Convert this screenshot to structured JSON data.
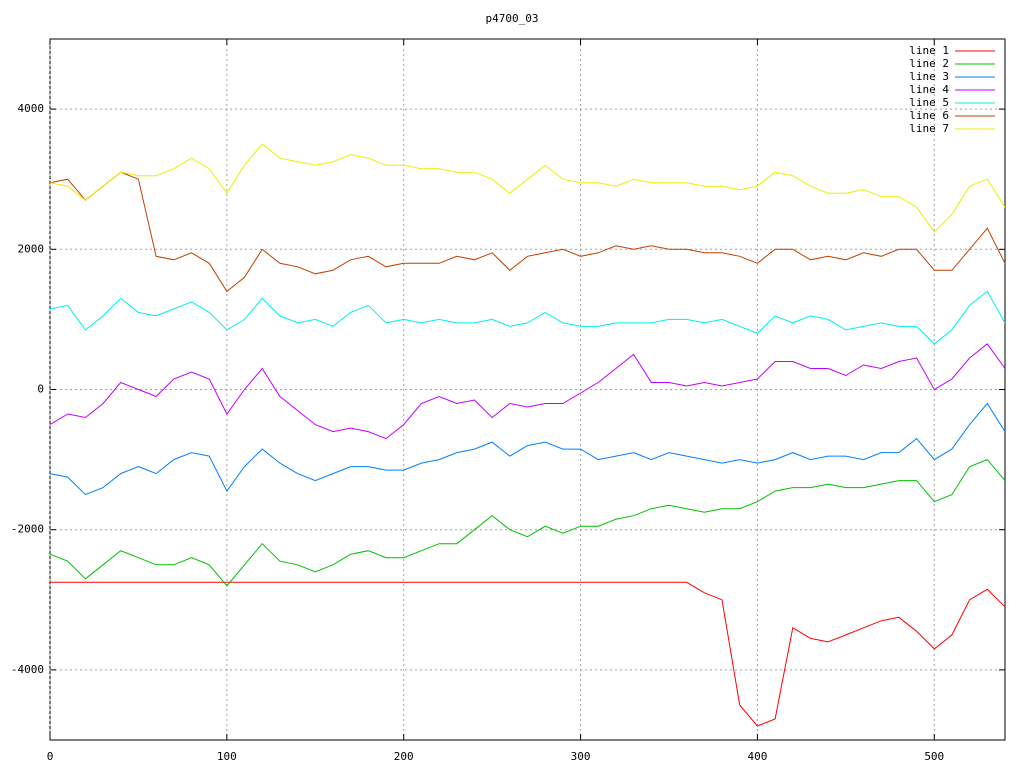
{
  "chart_data": {
    "type": "line",
    "title": "p4700_03",
    "x": [
      0,
      10,
      20,
      30,
      40,
      50,
      60,
      70,
      80,
      90,
      100,
      110,
      120,
      130,
      140,
      150,
      160,
      170,
      180,
      190,
      200,
      210,
      220,
      230,
      240,
      250,
      260,
      270,
      280,
      290,
      300,
      310,
      320,
      330,
      340,
      350,
      360,
      370,
      380,
      390,
      400,
      410,
      420,
      430,
      440,
      450,
      460,
      470,
      480,
      490,
      500,
      510,
      520,
      530,
      540
    ],
    "xlim": [
      0,
      540
    ],
    "ylim": [
      -5000,
      5000
    ],
    "xticks": [
      0,
      100,
      200,
      300,
      400,
      500
    ],
    "yticks": [
      -4000,
      -2000,
      0,
      2000,
      4000
    ],
    "grid": true,
    "legend": "top-right",
    "series": [
      {
        "name": "line 1",
        "color": "#ff0000",
        "values": [
          -2750,
          -2750,
          -2750,
          -2750,
          -2750,
          -2750,
          -2750,
          -2750,
          -2750,
          -2750,
          -2750,
          -2750,
          -2750,
          -2750,
          -2750,
          -2750,
          -2750,
          -2750,
          -2750,
          -2750,
          -2750,
          -2750,
          -2750,
          -2750,
          -2750,
          -2750,
          -2750,
          -2750,
          -2750,
          -2750,
          -2750,
          -2750,
          -2750,
          -2750,
          -2750,
          -2750,
          -2750,
          -2900,
          -3000,
          -4500,
          -4800,
          -4700,
          -3400,
          -3550,
          -3600,
          -3500,
          -3400,
          -3300,
          -3250,
          -3450,
          -3700,
          -3500,
          -3000,
          -2850,
          -3100
        ]
      },
      {
        "name": "line 2",
        "color": "#00c000",
        "values": [
          -2350,
          -2450,
          -2700,
          -2500,
          -2300,
          -2400,
          -2500,
          -2500,
          -2400,
          -2500,
          -2800,
          -2500,
          -2200,
          -2450,
          -2500,
          -2600,
          -2500,
          -2350,
          -2300,
          -2400,
          -2400,
          -2300,
          -2200,
          -2200,
          -2000,
          -1800,
          -2000,
          -2100,
          -1950,
          -2050,
          -1950,
          -1950,
          -1850,
          -1800,
          -1700,
          -1650,
          -1700,
          -1750,
          -1700,
          -1700,
          -1600,
          -1450,
          -1400,
          -1400,
          -1350,
          -1400,
          -1400,
          -1350,
          -1300,
          -1300,
          -1600,
          -1500,
          -1100,
          -1000,
          -1300
        ]
      },
      {
        "name": "line 3",
        "color": "#0080ff",
        "values": [
          -1200,
          -1250,
          -1500,
          -1400,
          -1200,
          -1100,
          -1200,
          -1000,
          -900,
          -950,
          -1450,
          -1100,
          -850,
          -1050,
          -1200,
          -1300,
          -1200,
          -1100,
          -1100,
          -1150,
          -1150,
          -1050,
          -1000,
          -900,
          -850,
          -750,
          -950,
          -800,
          -750,
          -850,
          -850,
          -1000,
          -950,
          -900,
          -1000,
          -900,
          -950,
          -1000,
          -1050,
          -1000,
          -1050,
          -1000,
          -900,
          -1000,
          -950,
          -950,
          -1000,
          -900,
          -900,
          -700,
          -1000,
          -850,
          -500,
          -200,
          -600
        ]
      },
      {
        "name": "line 4",
        "color": "#c000ff",
        "values": [
          -500,
          -350,
          -400,
          -200,
          100,
          0,
          -100,
          150,
          250,
          150,
          -350,
          0,
          300,
          -100,
          -300,
          -500,
          -600,
          -550,
          -600,
          -700,
          -500,
          -200,
          -100,
          -200,
          -150,
          -400,
          -200,
          -250,
          -200,
          -200,
          -50,
          100,
          300,
          500,
          100,
          100,
          50,
          100,
          50,
          100,
          150,
          400,
          400,
          300,
          300,
          200,
          350,
          300,
          400,
          450,
          0,
          150,
          450,
          650,
          300
        ]
      },
      {
        "name": "line 5",
        "color": "#00eeee",
        "values": [
          1150,
          1200,
          850,
          1050,
          1300,
          1100,
          1050,
          1150,
          1250,
          1100,
          850,
          1000,
          1300,
          1050,
          950,
          1000,
          900,
          1100,
          1200,
          950,
          1000,
          950,
          1000,
          950,
          950,
          1000,
          900,
          950,
          1100,
          950,
          900,
          900,
          950,
          950,
          950,
          1000,
          1000,
          950,
          1000,
          900,
          800,
          1050,
          950,
          1050,
          1000,
          850,
          900,
          950,
          900,
          900,
          650,
          850,
          1200,
          1400,
          950
        ]
      },
      {
        "name": "line 6",
        "color": "#c04000",
        "values": [
          2950,
          3000,
          2700,
          2900,
          3100,
          3000,
          1900,
          1850,
          1950,
          1800,
          1400,
          1600,
          2000,
          1800,
          1750,
          1650,
          1700,
          1850,
          1900,
          1750,
          1800,
          1800,
          1800,
          1900,
          1850,
          1950,
          1700,
          1900,
          1950,
          2000,
          1900,
          1950,
          2050,
          2000,
          2050,
          2000,
          2000,
          1950,
          1950,
          1900,
          1800,
          2000,
          2000,
          1850,
          1900,
          1850,
          1950,
          1900,
          2000,
          2000,
          1700,
          1700,
          2000,
          2300,
          1800
        ]
      },
      {
        "name": "line 7",
        "color": "#eeee00",
        "values": [
          2950,
          2900,
          2700,
          2900,
          3100,
          3050,
          3050,
          3150,
          3300,
          3150,
          2800,
          3200,
          3500,
          3300,
          3250,
          3200,
          3250,
          3350,
          3300,
          3200,
          3200,
          3150,
          3150,
          3100,
          3100,
          3000,
          2800,
          3000,
          3200,
          3000,
          2950,
          2950,
          2900,
          3000,
          2950,
          2950,
          2950,
          2900,
          2900,
          2850,
          2900,
          3100,
          3050,
          2900,
          2800,
          2800,
          2850,
          2750,
          2750,
          2600,
          2250,
          2500,
          2900,
          3000,
          2600
        ]
      }
    ]
  }
}
